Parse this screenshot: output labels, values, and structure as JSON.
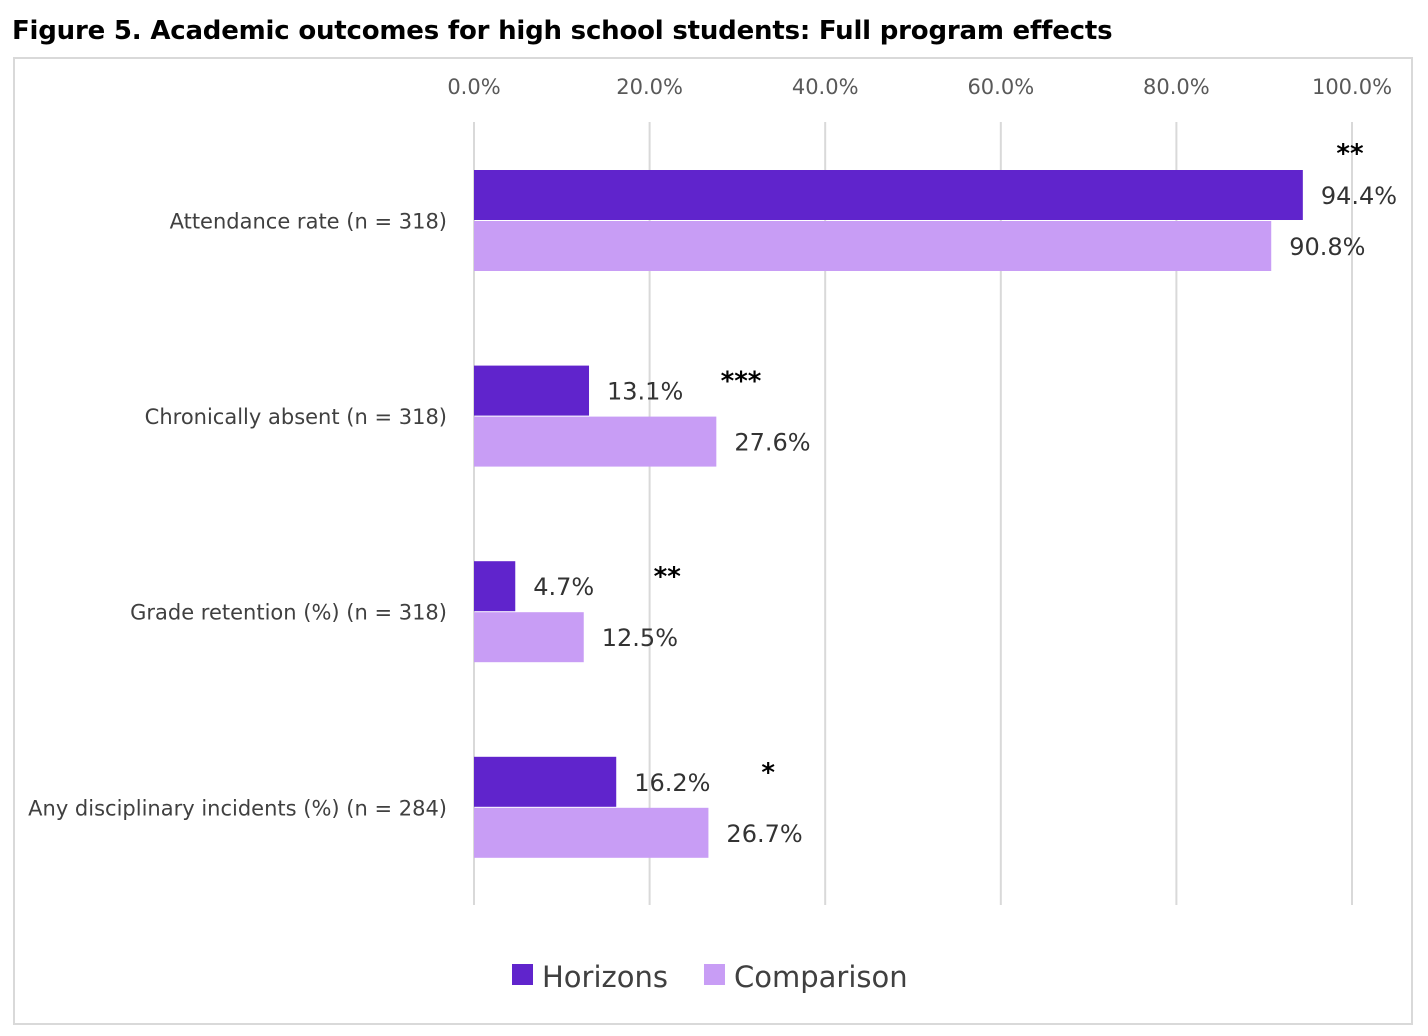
{
  "chart_data": {
    "type": "bar",
    "orientation": "horizontal",
    "title": "Figure 5. Academic outcomes for high school students: Full program effects",
    "categories": [
      "Attendance rate  (n = 318)",
      "Chronically absent (n = 318)",
      "Grade retention (%) (n = 318)",
      "Any disciplinary incidents (%) (n = 284)"
    ],
    "series": [
      {
        "name": "Horizons",
        "color": "#6024cc",
        "values": [
          94.4,
          13.1,
          4.7,
          16.2
        ],
        "labels": [
          "94.4%",
          "13.1%",
          "4.7%",
          "16.2%"
        ]
      },
      {
        "name": "Comparison",
        "color": "#c89df5",
        "values": [
          90.8,
          27.6,
          12.5,
          26.7
        ],
        "labels": [
          "90.8%",
          "27.6%",
          "12.5%",
          "26.7%"
        ]
      }
    ],
    "significance": [
      "**",
      "***",
      "**",
      "*"
    ],
    "xlim": [
      0,
      100
    ],
    "x_ticks": [
      "0.0%",
      "20.0%",
      "40.0%",
      "60.0%",
      "80.0%",
      "100.0%"
    ],
    "x_axis_position": "top",
    "grid": true,
    "legend_position": "bottom"
  }
}
